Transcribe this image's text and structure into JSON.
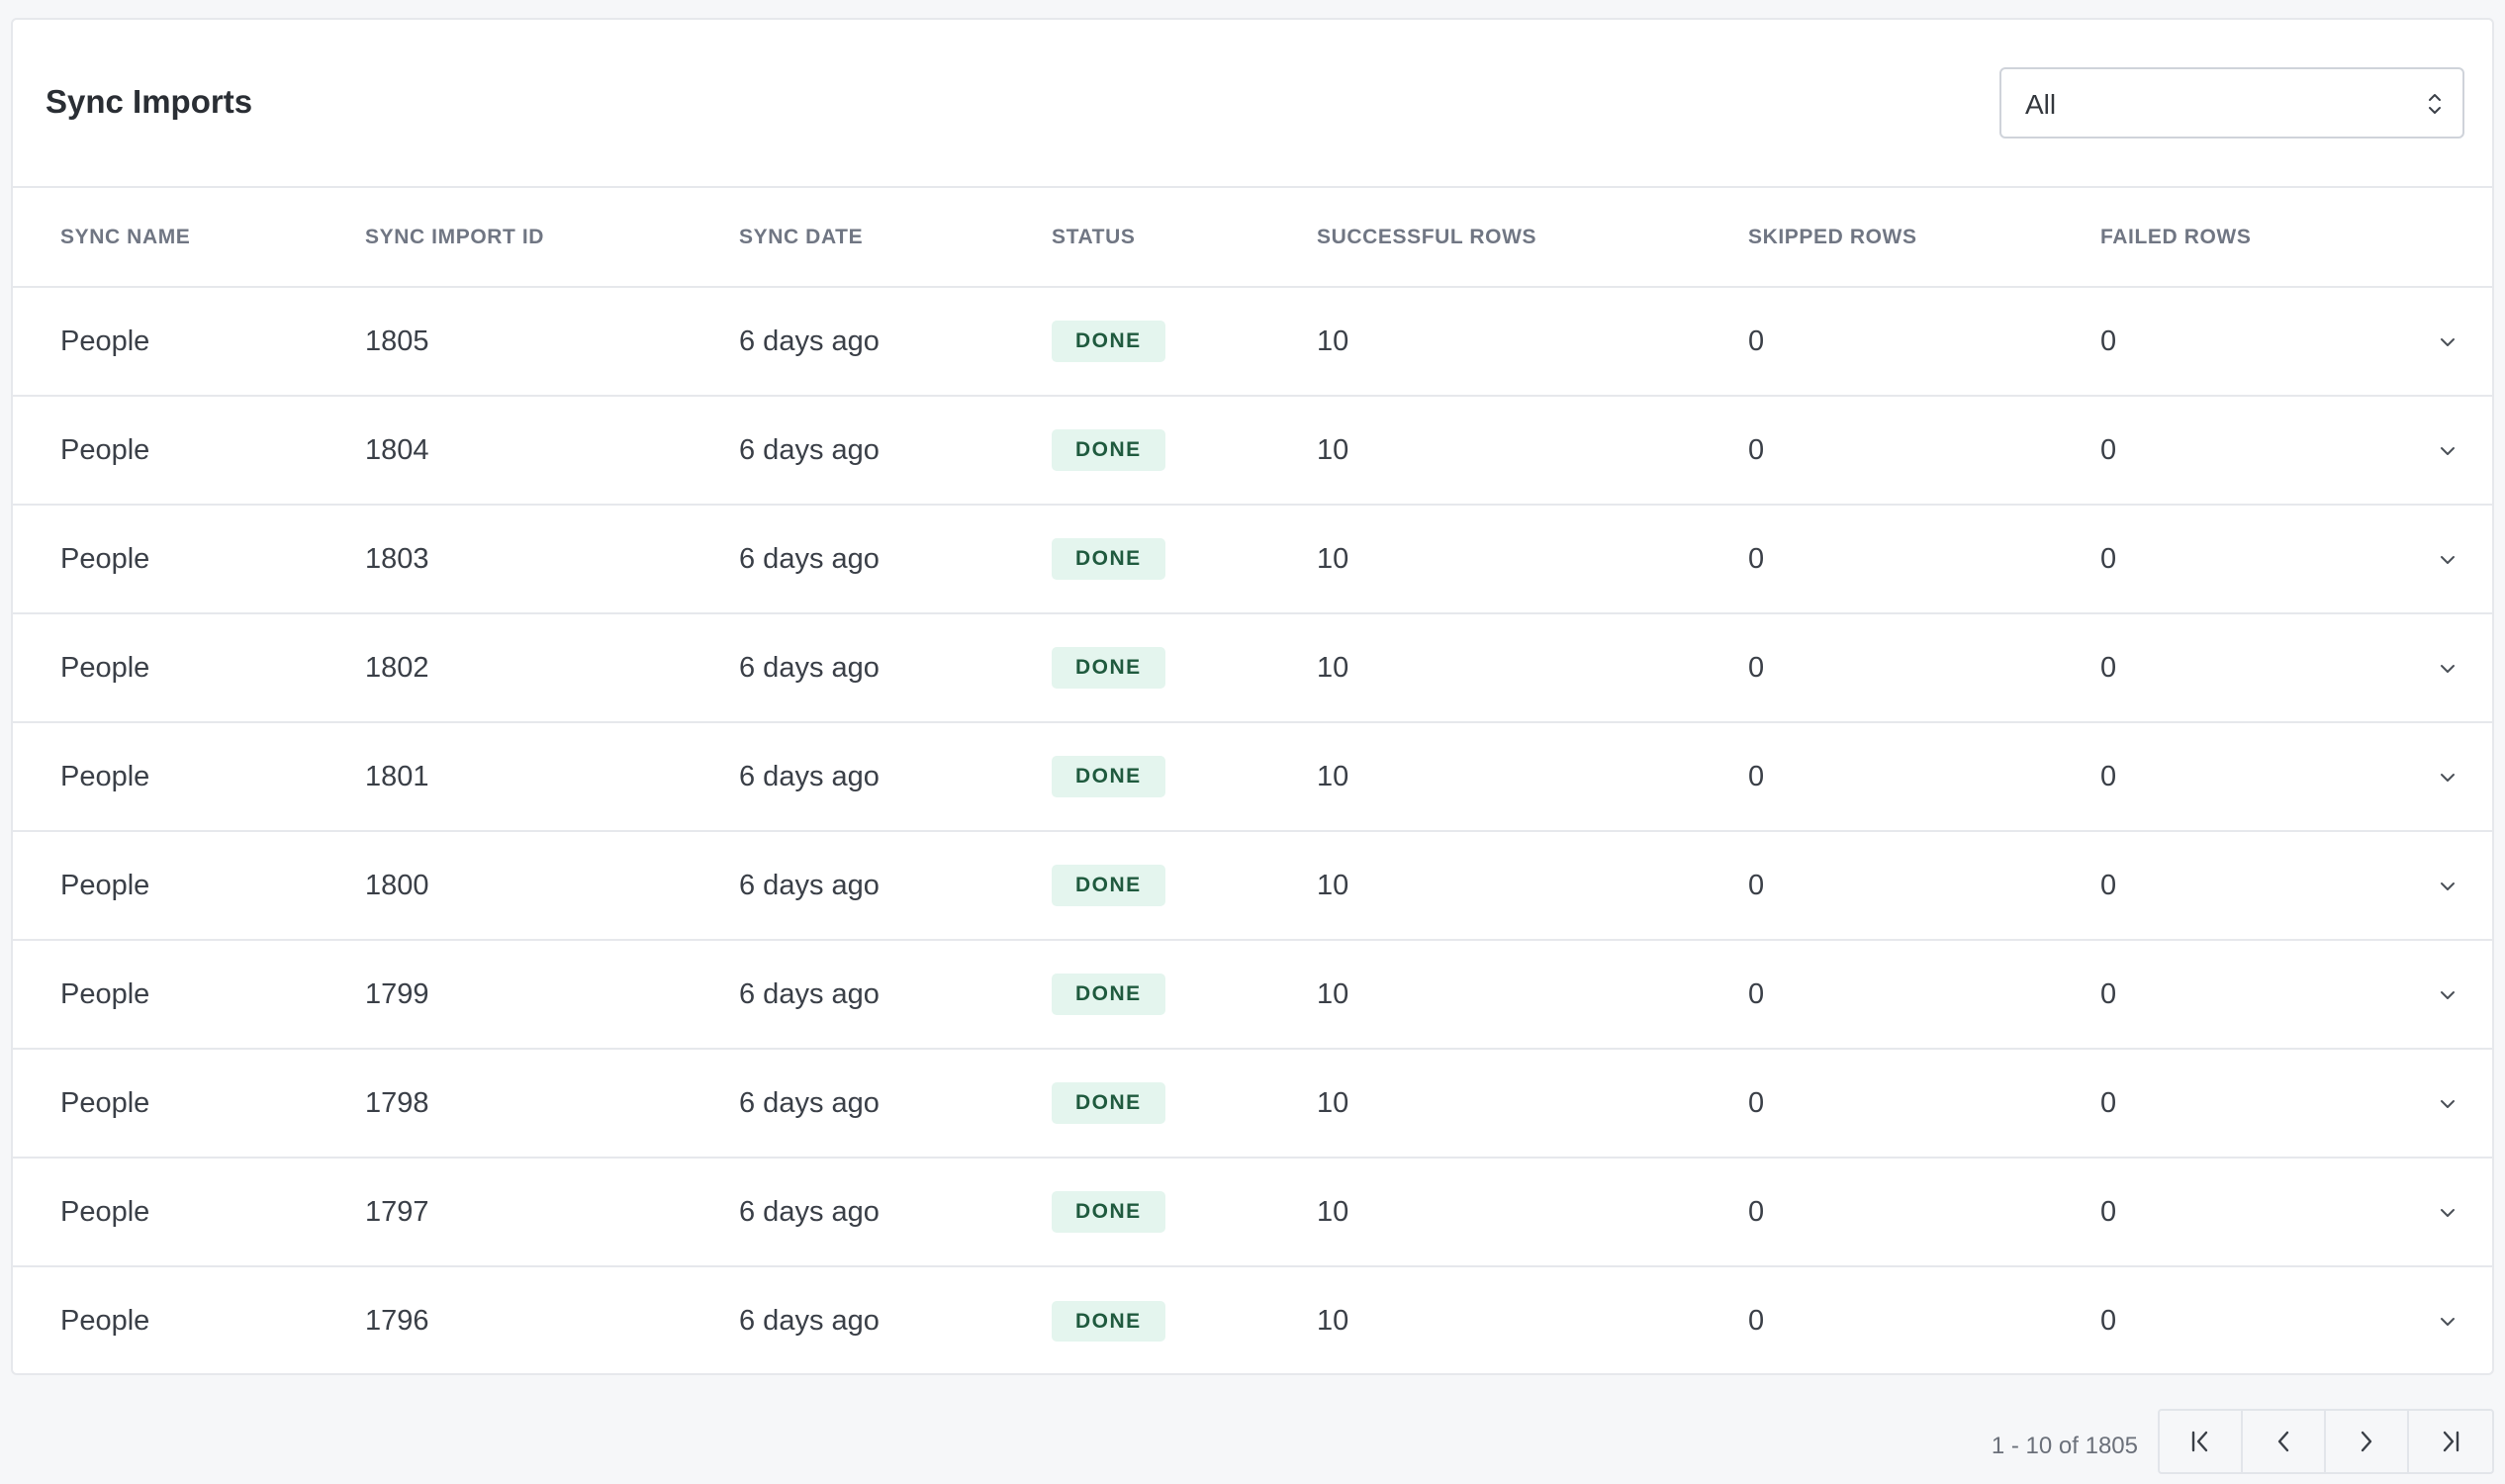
{
  "header": {
    "title": "Sync Imports",
    "filter": {
      "selected": "All"
    }
  },
  "table": {
    "columns": [
      "SYNC NAME",
      "SYNC IMPORT ID",
      "SYNC DATE",
      "STATUS",
      "SUCCESSFUL ROWS",
      "SKIPPED ROWS",
      "FAILED ROWS"
    ],
    "rows": [
      {
        "name": "People",
        "id": "1805",
        "date": "6 days ago",
        "status": "DONE",
        "successful": "10",
        "skipped": "0",
        "failed": "0"
      },
      {
        "name": "People",
        "id": "1804",
        "date": "6 days ago",
        "status": "DONE",
        "successful": "10",
        "skipped": "0",
        "failed": "0"
      },
      {
        "name": "People",
        "id": "1803",
        "date": "6 days ago",
        "status": "DONE",
        "successful": "10",
        "skipped": "0",
        "failed": "0"
      },
      {
        "name": "People",
        "id": "1802",
        "date": "6 days ago",
        "status": "DONE",
        "successful": "10",
        "skipped": "0",
        "failed": "0"
      },
      {
        "name": "People",
        "id": "1801",
        "date": "6 days ago",
        "status": "DONE",
        "successful": "10",
        "skipped": "0",
        "failed": "0"
      },
      {
        "name": "People",
        "id": "1800",
        "date": "6 days ago",
        "status": "DONE",
        "successful": "10",
        "skipped": "0",
        "failed": "0"
      },
      {
        "name": "People",
        "id": "1799",
        "date": "6 days ago",
        "status": "DONE",
        "successful": "10",
        "skipped": "0",
        "failed": "0"
      },
      {
        "name": "People",
        "id": "1798",
        "date": "6 days ago",
        "status": "DONE",
        "successful": "10",
        "skipped": "0",
        "failed": "0"
      },
      {
        "name": "People",
        "id": "1797",
        "date": "6 days ago",
        "status": "DONE",
        "successful": "10",
        "skipped": "0",
        "failed": "0"
      },
      {
        "name": "People",
        "id": "1796",
        "date": "6 days ago",
        "status": "DONE",
        "successful": "10",
        "skipped": "0",
        "failed": "0"
      }
    ]
  },
  "pagination": {
    "label": "1 - 10 of 1805",
    "buttons": [
      "first-page-icon",
      "previous-page-icon",
      "next-page-icon",
      "last-page-icon"
    ]
  },
  "colors": {
    "status_done_bg": "#e4f5ee",
    "status_done_text": "#1f5a3e"
  }
}
